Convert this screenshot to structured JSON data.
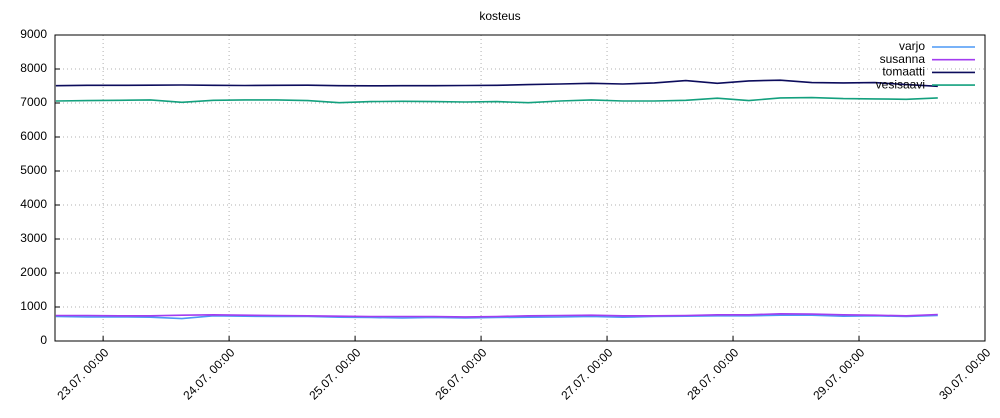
{
  "chart_data": {
    "type": "line",
    "title": "kosteus",
    "x": [
      "22.07. 15:00",
      "22.07. 21:00",
      "23.07. 03:00",
      "23.07. 09:00",
      "23.07. 15:00",
      "23.07. 21:00",
      "24.07. 03:00",
      "24.07. 09:00",
      "24.07. 15:00",
      "24.07. 21:00",
      "25.07. 03:00",
      "25.07. 09:00",
      "25.07. 15:00",
      "25.07. 21:00",
      "26.07. 03:00",
      "26.07. 09:00",
      "26.07. 15:00",
      "26.07. 21:00",
      "27.07. 03:00",
      "27.07. 09:00",
      "27.07. 15:00",
      "27.07. 21:00",
      "28.07. 03:00",
      "28.07. 09:00",
      "28.07. 15:00",
      "28.07. 21:00",
      "29.07. 03:00",
      "29.07. 09:00",
      "29.07. 15:00"
    ],
    "series": [
      {
        "name": "varjo",
        "color": "#4c98f5",
        "values": [
          720,
          710,
          710,
          700,
          660,
          740,
          730,
          720,
          720,
          700,
          690,
          680,
          690,
          680,
          690,
          700,
          710,
          720,
          700,
          720,
          730,
          740,
          740,
          760,
          760,
          730,
          740,
          720,
          750
        ]
      },
      {
        "name": "susanna",
        "color": "#a33cf0",
        "values": [
          750,
          750,
          740,
          740,
          760,
          770,
          760,
          750,
          740,
          730,
          720,
          720,
          720,
          710,
          720,
          740,
          750,
          760,
          740,
          740,
          750,
          770,
          770,
          800,
          790,
          770,
          760,
          740,
          780
        ]
      },
      {
        "name": "tomaatti",
        "color": "#0c0c5c",
        "values": [
          7510,
          7520,
          7520,
          7525,
          7530,
          7520,
          7515,
          7520,
          7525,
          7510,
          7505,
          7510,
          7510,
          7515,
          7520,
          7540,
          7560,
          7580,
          7560,
          7590,
          7660,
          7580,
          7650,
          7670,
          7600,
          7590,
          7600,
          7540,
          7490
        ]
      },
      {
        "name": "vesisaavi",
        "color": "#13a07e",
        "values": [
          7060,
          7070,
          7080,
          7090,
          7020,
          7080,
          7090,
          7090,
          7070,
          7010,
          7040,
          7050,
          7040,
          7030,
          7040,
          7010,
          7060,
          7090,
          7060,
          7060,
          7080,
          7140,
          7070,
          7150,
          7160,
          7130,
          7120,
          7110,
          7150
        ]
      }
    ],
    "xlim": [
      "22.07. 14:50",
      "30.07. 00:00"
    ],
    "xticks": [
      "23.07. 00:00",
      "24.07. 00:00",
      "25.07. 00:00",
      "26.07. 00:00",
      "27.07. 00:00",
      "28.07. 00:00",
      "29.07. 00:00",
      "30.07. 00:00"
    ],
    "ylim": [
      0,
      9000
    ],
    "yticks": [
      0,
      1000,
      2000,
      3000,
      4000,
      5000,
      6000,
      7000,
      8000,
      9000
    ],
    "grid": true,
    "legend": "top-right"
  }
}
